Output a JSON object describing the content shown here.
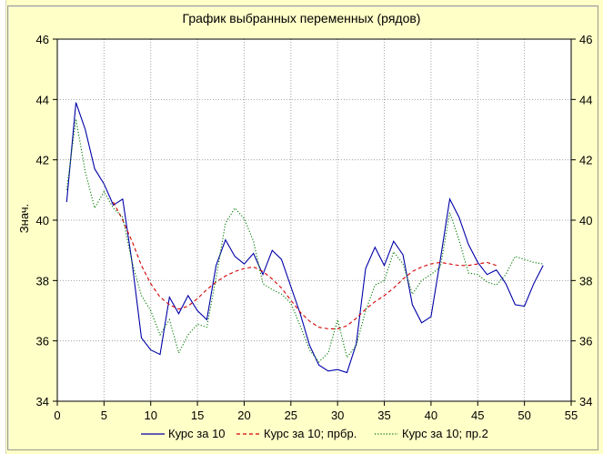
{
  "chart_data": {
    "type": "line",
    "title": "График выбранных переменных (рядов)",
    "ylabel": "Знач.",
    "xlabel": "",
    "xlim": [
      0,
      55
    ],
    "ylim": [
      34,
      46
    ],
    "xticks": [
      0,
      5,
      10,
      15,
      20,
      25,
      30,
      35,
      40,
      45,
      50,
      55
    ],
    "yticks": [
      34,
      36,
      38,
      40,
      42,
      44,
      46
    ],
    "grid": true,
    "legend_position": "bottom",
    "series": [
      {
        "name": "Курс за 10",
        "color": "#0000a8",
        "style": "solid",
        "x": [
          1,
          2,
          3,
          4,
          5,
          6,
          7,
          8,
          9,
          10,
          11,
          12,
          13,
          14,
          15,
          16,
          17,
          18,
          19,
          20,
          21,
          22,
          23,
          24,
          25,
          26,
          27,
          28,
          29,
          30,
          31,
          32,
          33,
          34,
          35,
          36,
          37,
          38,
          39,
          40,
          41,
          42,
          43,
          44,
          45,
          46,
          47,
          48,
          49,
          50,
          51,
          52
        ],
        "values": [
          40.6,
          43.9,
          43.0,
          41.7,
          41.2,
          40.5,
          40.7,
          38.6,
          36.1,
          35.7,
          35.55,
          37.45,
          36.9,
          37.5,
          37.0,
          36.7,
          38.5,
          39.35,
          38.8,
          38.55,
          38.9,
          38.2,
          39.0,
          38.7,
          37.8,
          36.9,
          35.85,
          35.2,
          35.0,
          35.05,
          34.95,
          35.9,
          38.4,
          39.1,
          38.5,
          39.3,
          38.85,
          37.2,
          36.6,
          36.8,
          38.7,
          40.7,
          40.1,
          39.2,
          38.6,
          38.2,
          38.35,
          37.9,
          37.2,
          37.15,
          37.9,
          38.5
        ]
      },
      {
        "name": "Курс за 10; прбр.",
        "color": "#d40000",
        "style": "dashed",
        "x": [
          6,
          7,
          8,
          9,
          10,
          11,
          12,
          13,
          14,
          15,
          16,
          17,
          18,
          19,
          20,
          21,
          22,
          23,
          24,
          25,
          26,
          27,
          28,
          29,
          30,
          31,
          32,
          33,
          34,
          35,
          36,
          37,
          38,
          39,
          40,
          41,
          42,
          43,
          44,
          45,
          46,
          47
        ],
        "values": [
          40.6,
          40.0,
          39.3,
          38.5,
          37.9,
          37.45,
          37.2,
          37.05,
          37.15,
          37.4,
          37.7,
          37.95,
          38.15,
          38.3,
          38.4,
          38.45,
          38.3,
          38.05,
          37.75,
          37.35,
          36.95,
          36.65,
          36.45,
          36.4,
          36.4,
          36.5,
          36.75,
          37.05,
          37.3,
          37.5,
          37.75,
          38.05,
          38.3,
          38.45,
          38.55,
          38.6,
          38.55,
          38.5,
          38.5,
          38.55,
          38.6,
          38.5
        ]
      },
      {
        "name": "Курс за 10; пр.2",
        "color": "#007a00",
        "style": "dotted",
        "x": [
          1,
          2,
          3,
          4,
          5,
          6,
          7,
          8,
          9,
          10,
          11,
          12,
          13,
          14,
          15,
          16,
          17,
          18,
          19,
          20,
          21,
          22,
          23,
          24,
          25,
          26,
          27,
          28,
          29,
          30,
          31,
          32,
          33,
          34,
          35,
          36,
          37,
          38,
          39,
          40,
          41,
          42,
          43,
          44,
          45,
          46,
          47,
          48,
          49,
          50,
          51,
          52
        ],
        "values": [
          41.0,
          43.35,
          41.6,
          40.4,
          40.95,
          40.4,
          40.1,
          38.6,
          37.5,
          37.0,
          36.2,
          36.7,
          35.6,
          36.2,
          36.55,
          36.45,
          38.1,
          39.9,
          40.4,
          40.05,
          39.3,
          37.9,
          37.7,
          37.55,
          37.25,
          36.5,
          35.7,
          35.3,
          35.6,
          36.7,
          35.45,
          35.85,
          37.0,
          37.85,
          38.0,
          38.95,
          38.55,
          37.55,
          38.0,
          38.2,
          38.45,
          40.25,
          39.35,
          38.25,
          38.2,
          37.95,
          37.85,
          38.2,
          38.8,
          38.7,
          38.6,
          38.55
        ]
      }
    ]
  }
}
